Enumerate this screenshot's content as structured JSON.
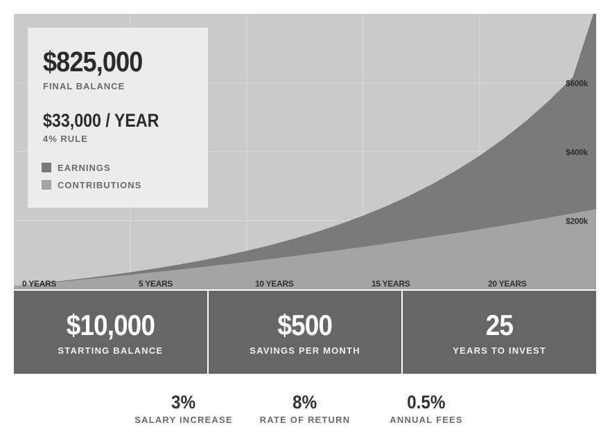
{
  "summary": {
    "final_balance": "$825,000",
    "final_balance_label": "FINAL BALANCE",
    "annual_income": "$33,000 / YEAR",
    "annual_income_label": "4% RULE",
    "legend": [
      {
        "label": "EARNINGS",
        "color": "#7a7a7a"
      },
      {
        "label": "CONTRIBUTIONS",
        "color": "#a4a4a4"
      }
    ]
  },
  "chart_data": {
    "type": "area",
    "stacked": true,
    "x": [
      0,
      1,
      2,
      3,
      4,
      5,
      6,
      7,
      8,
      9,
      10,
      11,
      12,
      13,
      14,
      15,
      16,
      17,
      18,
      19,
      20,
      21,
      22,
      23,
      24,
      25
    ],
    "series": [
      {
        "name": "CONTRIBUTIONS",
        "color": "#a4a4a4",
        "values": [
          10000,
          16000,
          22200,
          28600,
          35200,
          42000,
          49000,
          56300,
          63800,
          71500,
          79500,
          87700,
          96200,
          104900,
          113900,
          123200,
          132800,
          142700,
          152900,
          163400,
          174200,
          185300,
          196700,
          208400,
          220400,
          232700
        ]
      },
      {
        "name": "EARNINGS",
        "color": "#7a7a7a",
        "values": [
          0,
          800,
          1800,
          3200,
          5100,
          7600,
          10700,
          14600,
          19400,
          25200,
          32200,
          40500,
          50300,
          61800,
          75200,
          90800,
          108900,
          129900,
          154100,
          182000,
          214000,
          250700,
          292800,
          341000,
          396000,
          592300
        ]
      }
    ],
    "x_ticks": [
      {
        "value": 0,
        "label": "0 YEARS"
      },
      {
        "value": 5,
        "label": "5 YEARS"
      },
      {
        "value": 10,
        "label": "10 YEARS"
      },
      {
        "value": 15,
        "label": "15 YEARS"
      },
      {
        "value": 20,
        "label": "20 YEARS"
      }
    ],
    "y_ticks": [
      {
        "value": 200000,
        "label": "$200k"
      },
      {
        "value": 400000,
        "label": "$400k"
      },
      {
        "value": 600000,
        "label": "$600k"
      }
    ],
    "xlim": [
      0,
      25
    ],
    "ylim": [
      0,
      800000
    ],
    "grid": true,
    "background": "#cacaca",
    "grid_color": "#dadada"
  },
  "stats": [
    {
      "value": "$10,000",
      "label": "STARTING BALANCE"
    },
    {
      "value": "$500",
      "label": "SAVINGS PER MONTH"
    },
    {
      "value": "25",
      "label": "YEARS TO INVEST"
    }
  ],
  "params": [
    {
      "value": "3%",
      "label": "SALARY INCREASE"
    },
    {
      "value": "8%",
      "label": "RATE OF RETURN"
    },
    {
      "value": "0.5%",
      "label": "ANNUAL FEES"
    }
  ]
}
